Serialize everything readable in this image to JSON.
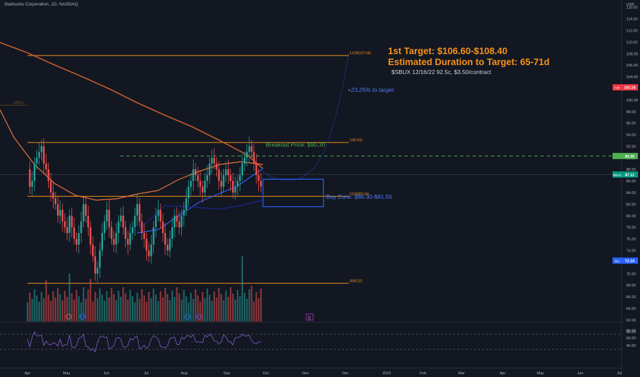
{
  "header": {
    "symbol_title": "Starbucks Corporation, 1D, NASDAQ"
  },
  "colors": {
    "background": "#131722",
    "candle_up": "#26a69a",
    "candle_down": "#ef5350",
    "fib_line": "#f7931a",
    "ma_orange": "#e8743b",
    "ma_dark_orange": "#c75d2c",
    "ma_blue": "#2962ff",
    "ma_navy": "#1a237e",
    "rsi_line": "#7e57c2",
    "breakout_green": "#4caf50",
    "target_text": "#f7931a",
    "buy_zone": "#2962ff",
    "projection": "#2962ff"
  },
  "annotations": {
    "target_title": "1st Target: $106.60-$108.40",
    "duration": "Estimated Duration to Target: 65-71d",
    "option": "$SBUX 12/16/22 92.5c, $3.50/contract",
    "percent_to_target": "+23.25% to target",
    "breakout": "Breakout Price: $90.30",
    "buy_zone": "Buy Zone: $86.30-$81.55",
    "event_marker": "E"
  },
  "price_tags": {
    "currency": "USD",
    "ask": {
      "label": "Ask",
      "value": "102.16"
    },
    "breakout": {
      "label": "",
      "value": "90.30"
    },
    "last": {
      "label": "SBUX",
      "value": "87.11"
    },
    "bid": {
      "label": "Bid",
      "value": "72.24"
    }
  },
  "chart_data": {
    "type": "candlestick",
    "symbol": "Starbucks Corporation, 1D, NASDAQ",
    "y_axis": {
      "unit": "USD",
      "ylim": [
        59,
        117
      ],
      "ticks": [
        60,
        62,
        64,
        66,
        68,
        70,
        72,
        74,
        76,
        78,
        80,
        82,
        84,
        86,
        88,
        90,
        92,
        94,
        96,
        98,
        100,
        102,
        104,
        106,
        108,
        110,
        112,
        114,
        116
      ]
    },
    "x_axis": {
      "ticks": [
        "Apr",
        "May",
        "Jun",
        "Jul",
        "Aug",
        "Sep",
        "Oct",
        "Nov",
        "Dec",
        "2023",
        "Feb",
        "Mar",
        "Apr",
        "May",
        "Jun",
        "Jul"
      ]
    },
    "fib_levels": [
      {
        "label": "1.618(107.66)",
        "price": 107.66
      },
      {
        "label": "1(92.63)",
        "price": 92.63
      },
      {
        "label": "0.618(83.34)",
        "price": 83.34
      },
      {
        "label": "0(68.32)",
        "price": 68.32
      },
      {
        "label": "1(99.1)",
        "price": 99.1
      }
    ],
    "breakout_price": 90.3,
    "buy_zone": [
      81.55,
      86.3
    ],
    "last_price": 87.11,
    "closes_approx": [
      88,
      85,
      86,
      89,
      90,
      91,
      92,
      89,
      88,
      86,
      84,
      83,
      82,
      80,
      81,
      79,
      78,
      77,
      80,
      78,
      76,
      75,
      77,
      79,
      82,
      80,
      78,
      75,
      73,
      70,
      71,
      74,
      77,
      79,
      81,
      78,
      76,
      75,
      77,
      79,
      80,
      78,
      76,
      75,
      77,
      78,
      80,
      82,
      79,
      77,
      76,
      74,
      73,
      75,
      78,
      80,
      81,
      79,
      77,
      75,
      74,
      76,
      78,
      80,
      79,
      78,
      80,
      81,
      83,
      85,
      86,
      88,
      87,
      86,
      85,
      84,
      86,
      87,
      89,
      90,
      89,
      88,
      86,
      85,
      87,
      88,
      87,
      86,
      84,
      85,
      86,
      87,
      89,
      90,
      91,
      92,
      91,
      89,
      87,
      86,
      85
    ],
    "rsi": {
      "levels": [
        80,
        60,
        40
      ],
      "upper_band": 70,
      "lower_band": 30
    }
  }
}
